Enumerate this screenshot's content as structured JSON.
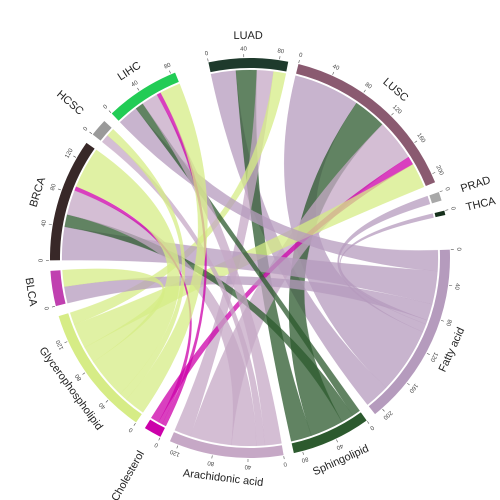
{
  "chart_data": {
    "type": "chord",
    "sectors": [
      {
        "name": "LUAD",
        "color": "#1e3a2c",
        "ticks": [
          0,
          40,
          80
        ]
      },
      {
        "name": "LUSC",
        "color": "#8a5a70",
        "ticks": [
          0,
          40,
          80,
          120,
          160,
          200
        ]
      },
      {
        "name": "PRAD",
        "color": "#a8a8a8",
        "ticks": [
          0
        ]
      },
      {
        "name": "THCA",
        "color": "#16301c",
        "ticks": [
          0
        ]
      },
      {
        "name": "Fatty acid",
        "color": "#b59bbd",
        "ticks": [
          0,
          40,
          80,
          120,
          160,
          200
        ]
      },
      {
        "name": "Sphingolipid",
        "color": "#2c5a2e",
        "ticks": [
          0,
          40,
          80
        ]
      },
      {
        "name": "Arachidonic acid",
        "color": "#c6a8c6",
        "ticks": [
          0,
          40,
          80,
          120
        ]
      },
      {
        "name": "Cholesterol",
        "color": "#cc00aa",
        "ticks": [
          0
        ]
      },
      {
        "name": "Glycerophospholipid",
        "color": "#d6ec86",
        "ticks": [
          0,
          40,
          80,
          120
        ]
      },
      {
        "name": "BLCA",
        "color": "#c040b0",
        "ticks": [
          0
        ]
      },
      {
        "name": "BRCA",
        "color": "#382828",
        "ticks": [
          0,
          40,
          80,
          120
        ]
      },
      {
        "name": "HCSC",
        "color": "#9a9a9a",
        "ticks": [
          0
        ]
      },
      {
        "name": "LIHC",
        "color": "#22cc55",
        "ticks": [
          0,
          40,
          80
        ]
      }
    ],
    "links": [
      {
        "source": "LUAD",
        "target": "Fatty acid",
        "value": 30
      },
      {
        "source": "LUAD",
        "target": "Sphingolipid",
        "value": 25
      },
      {
        "source": "LUAD",
        "target": "Arachidonic acid",
        "value": 20
      },
      {
        "source": "LUAD",
        "target": "Glycerophospholipid",
        "value": 15
      },
      {
        "source": "LUSC",
        "target": "Fatty acid",
        "value": 80
      },
      {
        "source": "LUSC",
        "target": "Sphingolipid",
        "value": 40
      },
      {
        "source": "LUSC",
        "target": "Arachidonic acid",
        "value": 50
      },
      {
        "source": "LUSC",
        "target": "Cholesterol",
        "value": 10
      },
      {
        "source": "LUSC",
        "target": "Glycerophospholipid",
        "value": 30
      },
      {
        "source": "PRAD",
        "target": "Fatty acid",
        "value": 10
      },
      {
        "source": "THCA",
        "target": "Fatty acid",
        "value": 5
      },
      {
        "source": "BLCA",
        "target": "Fatty acid",
        "value": 20
      },
      {
        "source": "BLCA",
        "target": "Glycerophospholipid",
        "value": 20
      },
      {
        "source": "BRCA",
        "target": "Fatty acid",
        "value": 40
      },
      {
        "source": "BRCA",
        "target": "Sphingolipid",
        "value": 15
      },
      {
        "source": "BRCA",
        "target": "Arachidonic acid",
        "value": 30
      },
      {
        "source": "BRCA",
        "target": "Cholesterol",
        "value": 5
      },
      {
        "source": "BRCA",
        "target": "Glycerophospholipid",
        "value": 50
      },
      {
        "source": "HCSC",
        "target": "Arachidonic acid",
        "value": 10
      },
      {
        "source": "HCSC",
        "target": "Glycerophospholipid",
        "value": 10
      },
      {
        "source": "LIHC",
        "target": "Fatty acid",
        "value": 25
      },
      {
        "source": "LIHC",
        "target": "Sphingolipid",
        "value": 10
      },
      {
        "source": "LIHC",
        "target": "Arachidonic acid",
        "value": 20
      },
      {
        "source": "LIHC",
        "target": "Cholesterol",
        "value": 5
      },
      {
        "source": "LIHC",
        "target": "Glycerophospholipid",
        "value": 25
      }
    ]
  }
}
